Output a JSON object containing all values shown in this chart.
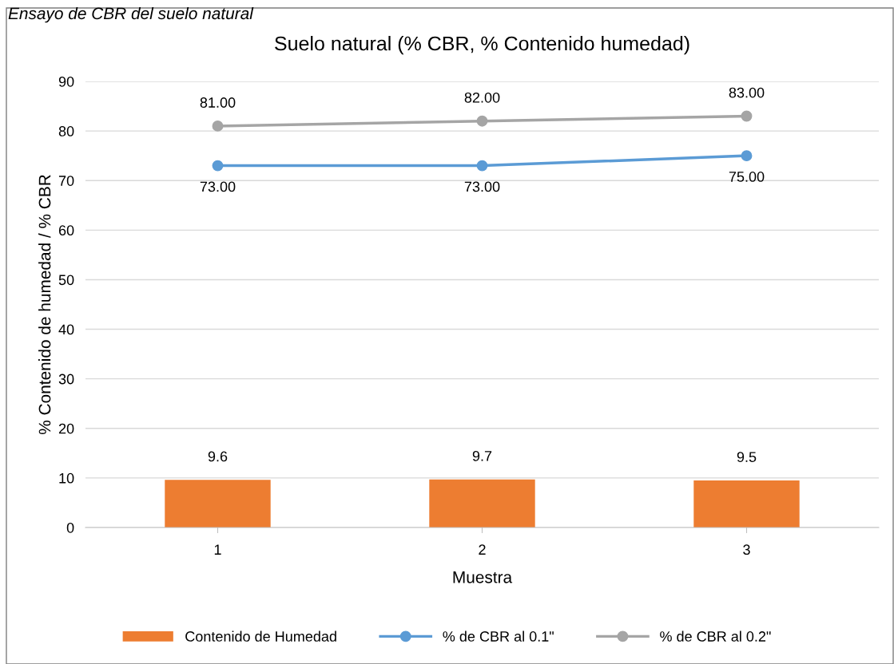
{
  "chart_data": {
    "type": "bar",
    "title": "Suelo natural (% CBR, % Contenido humedad)",
    "xlabel": "Muestra",
    "ylabel": "% Contenido de humedad / % CBR",
    "annotations": [
      "Ensayo de CBR del suelo natural"
    ],
    "categories": [
      "1",
      "2",
      "3"
    ],
    "series": [
      {
        "name": "Contenido de Humedad",
        "color": "#ed7d31",
        "values": [
          9.6,
          9.7,
          9.5
        ],
        "value_labels": [
          "9.6",
          "9.7",
          "9.5"
        ]
      },
      {
        "name": "% de CBR al 0.1\"",
        "type": "line",
        "color": "#5b9bd5",
        "values": [
          73,
          73,
          75
        ],
        "value_labels": [
          "73.00",
          "73.00",
          "75.00"
        ]
      },
      {
        "name": "% de CBR al 0.2\"",
        "type": "line",
        "color": "#a5a5a5",
        "values": [
          81,
          82,
          83
        ],
        "value_labels": [
          "81.00",
          "82.00",
          "83.00"
        ]
      }
    ],
    "ylim": [
      0,
      90
    ],
    "yticks": [
      0,
      10,
      20,
      30,
      40,
      50,
      60,
      70,
      80,
      90
    ],
    "grid": "y",
    "legend": "bottom",
    "marker": "circle",
    "line_style": "solid"
  }
}
